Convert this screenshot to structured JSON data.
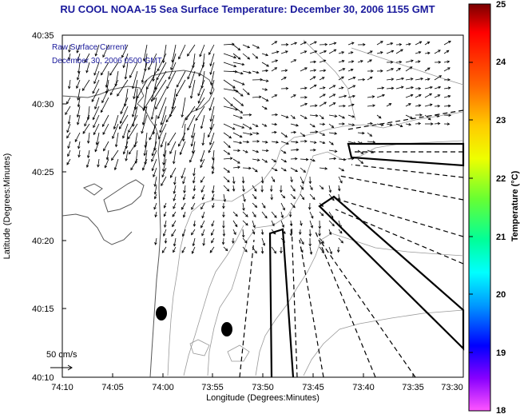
{
  "title": "RU COOL  NOAA-15  Sea Surface Temperature:  December 30, 2006 1155 GMT",
  "legend": {
    "line1": "Raw Surface Current",
    "line2": "December 30, 2006 0500 GMT"
  },
  "scale": {
    "label": "50 cm/s"
  },
  "axes": {
    "xlabel": "Longitude (Degrees:Minutes)",
    "ylabel": "Latitude (Degrees:Minutes)",
    "xticks": [
      "74:10",
      "74:05",
      "74:00",
      "73:55",
      "73:50",
      "73:45",
      "73:40",
      "73:35",
      "73:30"
    ],
    "yticks": [
      "40:35",
      "40:30",
      "40:25",
      "40:20",
      "40:15",
      "40:10"
    ]
  },
  "colorbar": {
    "label": "Temperature (°C)",
    "ticks": [
      "25",
      "24",
      "23",
      "22",
      "21",
      "20",
      "19",
      "18"
    ],
    "range": [
      18,
      25
    ]
  }
}
